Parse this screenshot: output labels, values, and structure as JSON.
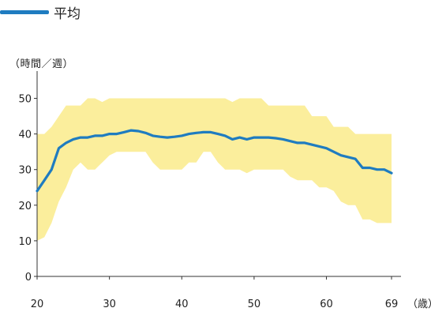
{
  "legend": {
    "label": "平均"
  },
  "yaxis": {
    "unit_label": "（時間／週）"
  },
  "xaxis": {
    "unit_label": "（歳）"
  },
  "colors": {
    "mean_line": "#1f7cc0",
    "band_fill": "#fbee9c",
    "axis": "#333333",
    "text": "#222222"
  },
  "chart_data": {
    "type": "line",
    "title": "",
    "xlabel": "歳",
    "ylabel": "時間／週",
    "xlim": [
      20,
      69
    ],
    "ylim": [
      0,
      55
    ],
    "xticks": [
      20,
      30,
      40,
      50,
      60,
      69
    ],
    "yticks": [
      0,
      10,
      20,
      30,
      40,
      50
    ],
    "x": [
      20,
      21,
      22,
      23,
      24,
      25,
      26,
      27,
      28,
      29,
      30,
      31,
      32,
      33,
      34,
      35,
      36,
      37,
      38,
      39,
      40,
      41,
      42,
      43,
      44,
      45,
      46,
      47,
      48,
      49,
      50,
      51,
      52,
      53,
      54,
      55,
      56,
      57,
      58,
      59,
      60,
      61,
      62,
      63,
      64,
      65,
      66,
      67,
      68,
      69
    ],
    "series": [
      {
        "name": "平均",
        "kind": "line",
        "values": [
          24,
          27,
          30,
          36,
          37.5,
          38.5,
          39,
          39,
          39.5,
          39.5,
          40,
          40,
          40.5,
          41,
          40.8,
          40.3,
          39.5,
          39.2,
          39,
          39.2,
          39.5,
          40,
          40.3,
          40.5,
          40.5,
          40,
          39.5,
          38.5,
          39,
          38.5,
          39,
          39,
          39,
          38.8,
          38.5,
          38,
          37.5,
          37.5,
          37,
          36.5,
          36,
          35,
          34,
          33.5,
          33,
          30.5,
          30.5,
          30,
          30,
          29
        ]
      },
      {
        "name": "",
        "kind": "band",
        "lower": [
          10,
          11,
          15,
          21,
          25,
          30,
          32,
          30,
          30,
          32,
          34,
          35,
          35,
          35,
          35,
          35,
          32,
          30,
          30,
          30,
          30,
          32,
          32,
          35,
          35,
          32,
          30,
          30,
          30,
          29,
          30,
          30,
          30,
          30,
          30,
          28,
          27,
          27,
          27,
          25,
          25,
          24,
          21,
          20,
          20,
          16,
          16,
          15,
          15,
          15
        ],
        "upper": [
          40,
          40,
          42,
          45,
          48,
          48,
          48,
          50,
          50,
          49,
          50,
          50,
          50,
          50,
          50,
          50,
          50,
          50,
          50,
          50,
          50,
          50,
          50,
          50,
          50,
          50,
          50,
          49,
          50,
          50,
          50,
          50,
          48,
          48,
          48,
          48,
          48,
          48,
          45,
          45,
          45,
          42,
          42,
          42,
          40,
          40,
          40,
          40,
          40,
          40
        ]
      }
    ]
  }
}
